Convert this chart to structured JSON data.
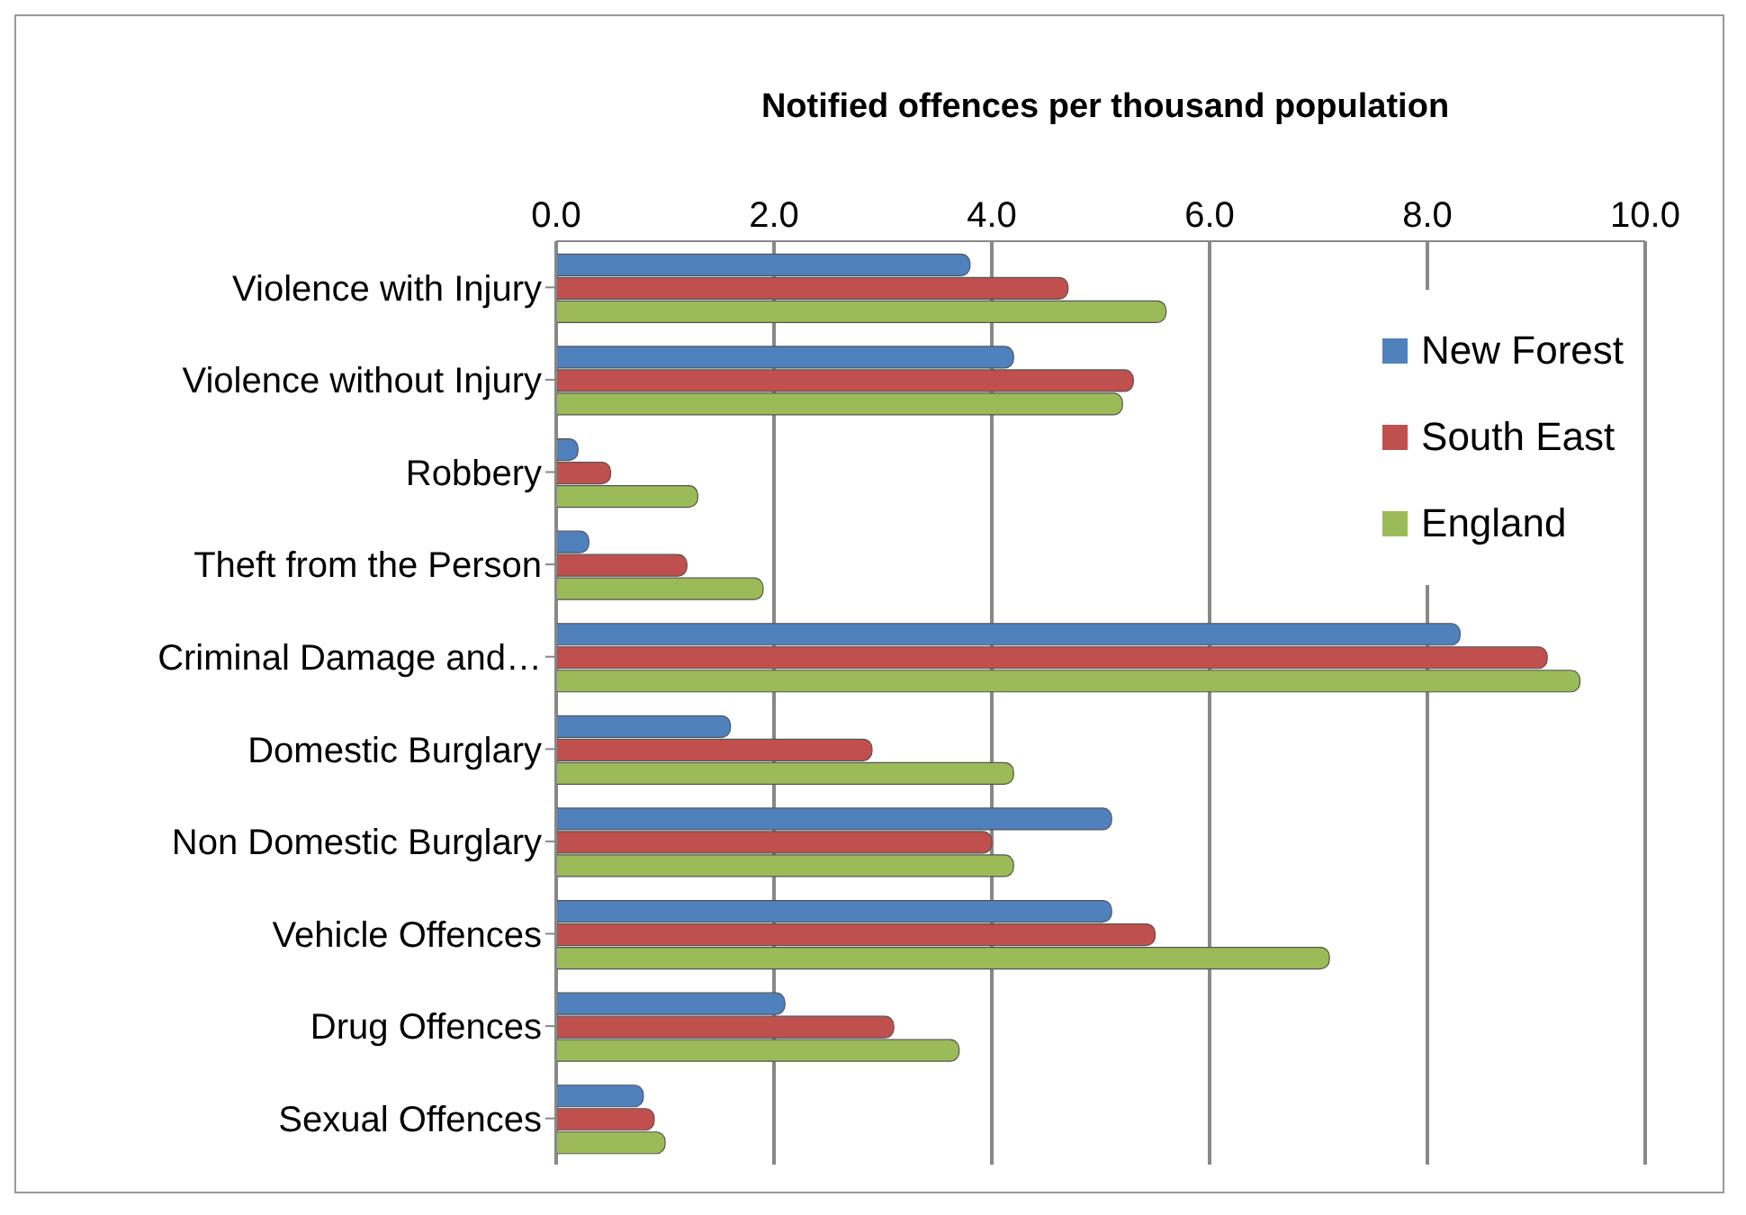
{
  "chart_data": {
    "type": "bar",
    "orientation": "horizontal",
    "xlabel": "Notified offences per thousand population",
    "categories": [
      "Violence with Injury",
      "Violence without Injury",
      "Robbery",
      "Theft from the Person",
      "Criminal Damage and…",
      "Domestic Burglary",
      "Non Domestic Burglary",
      "Vehicle Offences",
      "Drug Offences",
      "Sexual Offences"
    ],
    "series": [
      {
        "name": "New Forest",
        "color": "#4f81bd",
        "values": [
          3.8,
          4.2,
          0.2,
          0.3,
          8.3,
          1.6,
          5.1,
          5.1,
          2.1,
          0.8
        ]
      },
      {
        "name": "South East",
        "color": "#c0504d",
        "values": [
          4.7,
          5.3,
          0.5,
          1.2,
          9.1,
          2.9,
          4.0,
          5.5,
          3.1,
          0.9
        ]
      },
      {
        "name": "England",
        "color": "#9bbb59",
        "values": [
          5.6,
          5.2,
          1.3,
          1.9,
          9.4,
          4.2,
          4.2,
          7.1,
          3.7,
          1.0
        ]
      }
    ],
    "xlim": [
      0,
      10
    ],
    "xticks": [
      {
        "value": 0,
        "label": "0.0"
      },
      {
        "value": 2,
        "label": "2.0"
      },
      {
        "value": 4,
        "label": "4.0"
      },
      {
        "value": 6,
        "label": "6.0"
      },
      {
        "value": 8,
        "label": "8.0"
      },
      {
        "value": 10,
        "label": "10.0"
      }
    ],
    "grid": "x",
    "legend": "top right"
  }
}
